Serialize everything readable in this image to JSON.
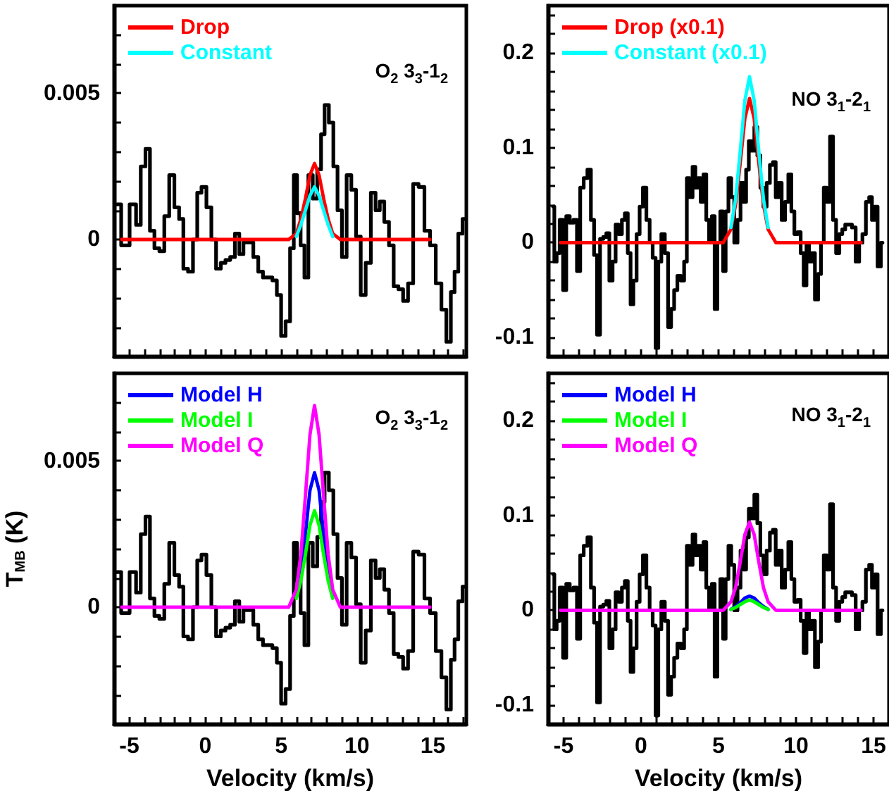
{
  "chart_data": [
    {
      "type": "step",
      "xlim": [
        -6,
        17.2
      ],
      "ylim": [
        -0.004,
        0.008
      ],
      "legend": "top left",
      "tick_labels": "y",
      "annotations": [
        "O$_{2}$ 3$_{3}$-1$_{2}$"
      ],
      "xticks": [
        {
          "value": -6,
          "label": null
        },
        {
          "value": -5,
          "label": null
        },
        {
          "value": -4,
          "label": null
        },
        {
          "value": -3,
          "label": null
        },
        {
          "value": -2,
          "label": null
        },
        {
          "value": -1,
          "label": null
        },
        {
          "value": 0,
          "label": null
        },
        {
          "value": 1,
          "label": null
        },
        {
          "value": 2,
          "label": null
        },
        {
          "value": 3,
          "label": null
        },
        {
          "value": 4,
          "label": null
        },
        {
          "value": 5,
          "label": null
        },
        {
          "value": 6,
          "label": null
        },
        {
          "value": 7,
          "label": null
        },
        {
          "value": 8,
          "label": null
        },
        {
          "value": 9,
          "label": null
        },
        {
          "value": 10,
          "label": null
        },
        {
          "value": 11,
          "label": null
        },
        {
          "value": 12,
          "label": null
        },
        {
          "value": 13,
          "label": null
        },
        {
          "value": 14,
          "label": null
        },
        {
          "value": 15,
          "label": null
        },
        {
          "value": 16,
          "label": null
        },
        {
          "value": 17,
          "label": null
        }
      ],
      "yticks": [
        {
          "value": -0.004,
          "label": null
        },
        {
          "value": -0.003,
          "label": null
        },
        {
          "value": -0.002,
          "label": null
        },
        {
          "value": -0.001,
          "label": null
        },
        0,
        {
          "value": 0.001,
          "label": null
        },
        {
          "value": 0.002,
          "label": null
        },
        {
          "value": 0.003,
          "label": null
        },
        {
          "value": 0.004,
          "label": null
        },
        0.005,
        {
          "value": 0.006,
          "label": null
        },
        {
          "value": 0.007,
          "label": null
        }
      ],
      "series": [
        {
          "color": "#000000",
          "x": [
            -5.82,
            -5.25,
            -4.71,
            -4.4,
            -4.09,
            -3.78,
            -3.5,
            -3.19,
            -2.85,
            -2.54,
            -2.2,
            -1.86,
            -1.58,
            -1.3,
            -0.96,
            -0.65,
            -0.4,
            -0.09,
            0.25,
            0.56,
            0.87,
            1.18,
            1.49,
            1.8,
            2.11,
            2.38,
            2.66,
            3,
            3.34,
            3.65,
            3.96,
            4.27,
            4.58,
            4.86,
            5.14,
            5.45,
            5.73,
            5.94,
            6.16,
            6.41,
            6.66,
            6.93,
            7.24,
            7.52,
            7.74,
            7.99,
            8.3,
            8.58,
            8.85,
            9.16,
            9.47,
            9.78,
            10.09,
            10.4,
            10.74,
            11.08,
            11.36,
            11.64,
            11.95,
            12.26,
            12.57,
            12.88,
            13.19,
            13.53,
            13.87,
            14.24,
            14.64,
            14.98,
            15.39,
            15.73,
            16.04,
            16.32,
            16.53,
            16.81,
            17.09
          ],
          "values": [
            0.0012,
            -0.0002,
            0.0012,
            0.0005,
            0.0025,
            0.0031,
            0.0003,
            -0.0003,
            -0.0004,
            0.0008,
            0.0022,
            0.0011,
            0.0007,
            -0.001,
            -0.0011,
            0,
            0.0016,
            0.0018,
            0.0011,
            0,
            -0.001,
            -0.0008,
            -0.0007,
            -0.0006,
            0.0002,
            -0.0005,
            -0.0001,
            -0.0001,
            -0.0006,
            -0.0011,
            -0.0013,
            -0.0013,
            -0.0014,
            -0.0019,
            -0.0033,
            -0.0028,
            -0.0003,
            0.0022,
            0.0009,
            -0.0002,
            -0.0013,
            0.0022,
            0.0014,
            0.0024,
            0.0036,
            0.0046,
            0.004,
            0.0025,
            0.001,
            -0.0006,
            0.0022,
            0.0017,
            0.0001,
            -0.0019,
            -0.0008,
            0.0016,
            0.001,
            0.0013,
            0.0006,
            -0.0002,
            -0.0016,
            -0.0017,
            -0.0021,
            -0.0015,
            0.0019,
            0.0018,
            0.0003,
            -0.0002,
            -0.0015,
            -0.0024,
            -0.0035,
            -0.0018,
            -0.0011,
            0.0002,
            0.0007
          ]
        },
        {
          "type": "line",
          "name": "Drop",
          "color": "#ff0000",
          "x": [
            -5.5,
            5.5,
            6.0,
            6.3,
            6.6,
            6.9,
            7.2,
            7.5,
            7.8,
            8.1,
            8.4,
            8.9,
            14.8
          ],
          "values": [
            0,
            0,
            0.0002,
            0.0007,
            0.0014,
            0.0022,
            0.0026,
            0.0022,
            0.0014,
            0.0007,
            0.0002,
            0,
            0
          ]
        },
        {
          "type": "line",
          "name": "Constant",
          "color": "#00ffff",
          "x": [
            6.0,
            6.3,
            6.6,
            6.9,
            7.2,
            7.5,
            7.8,
            8.1,
            8.4
          ],
          "values": [
            0.0001,
            0.0005,
            0.001,
            0.0015,
            0.0018,
            0.0015,
            0.001,
            0.0005,
            0.0001
          ]
        }
      ]
    },
    {
      "type": "step",
      "xlim": [
        -6,
        16
      ],
      "ylim": [
        -0.12,
        0.25
      ],
      "legend": "top left",
      "tick_labels": "y",
      "annotations": [
        "NO 3$_{1}$-2$_{1}$"
      ],
      "xticks": [
        {
          "value": -6,
          "label": null
        },
        {
          "value": -5,
          "label": null
        },
        {
          "value": -4,
          "label": null
        },
        {
          "value": -3,
          "label": null
        },
        {
          "value": -2,
          "label": null
        },
        {
          "value": -1,
          "label": null
        },
        {
          "value": 0,
          "label": null
        },
        {
          "value": 1,
          "label": null
        },
        {
          "value": 2,
          "label": null
        },
        {
          "value": 3,
          "label": null
        },
        {
          "value": 4,
          "label": null
        },
        {
          "value": 5,
          "label": null
        },
        {
          "value": 6,
          "label": null
        },
        {
          "value": 7,
          "label": null
        },
        {
          "value": 8,
          "label": null
        },
        {
          "value": 9,
          "label": null
        },
        {
          "value": 10,
          "label": null
        },
        {
          "value": 11,
          "label": null
        },
        {
          "value": 12,
          "label": null
        },
        {
          "value": 13,
          "label": null
        },
        {
          "value": 14,
          "label": null
        },
        {
          "value": 15,
          "label": null
        },
        {
          "value": 16,
          "label": null
        }
      ],
      "yticks": [
        {
          "value": -0.12,
          "label": null
        },
        -0.1,
        {
          "value": -0.08,
          "label": null
        },
        {
          "value": -0.06,
          "label": null
        },
        {
          "value": -0.04,
          "label": null
        },
        {
          "value": -0.02,
          "label": null
        },
        0,
        {
          "value": 0.02,
          "label": null
        },
        {
          "value": 0.04,
          "label": null
        },
        {
          "value": 0.06,
          "label": null
        },
        {
          "value": 0.08,
          "label": null
        },
        0.1,
        {
          "value": 0.12,
          "label": null
        },
        {
          "value": 0.14,
          "label": null
        },
        {
          "value": 0.16,
          "label": null
        },
        {
          "value": 0.18,
          "label": null
        },
        0.2,
        {
          "value": 0.22,
          "label": null
        },
        {
          "value": 0.24,
          "label": null
        }
      ],
      "series": [
        {
          "color": "#000000",
          "x": [
            -5.67,
            -5.52,
            -5.37,
            -5.13,
            -4.93,
            -4.72,
            -4.48,
            -4.24,
            -4.03,
            -3.82,
            -3.58,
            -3.34,
            -3.13,
            -2.93,
            -2.75,
            -2.54,
            -2.33,
            -2.15,
            -1.94,
            -1.73,
            -1.55,
            -1.34,
            -1.13,
            -0.96,
            -0.75,
            -0.6,
            -0.39,
            -0.18,
            0,
            0.24,
            0.45,
            0.66,
            0.84,
            1.04,
            1.19,
            1.43,
            1.64,
            1.85,
            2.03,
            2.24,
            2.45,
            2.69,
            2.87,
            3.04,
            3.22,
            3.43,
            3.58,
            3.76,
            3.94,
            4.12,
            4.3,
            4.48,
            4.66,
            4.84,
            5.01,
            5.22,
            5.37,
            5.55,
            5.73,
            5.91,
            6.12,
            6.33,
            6.51,
            6.69,
            6.87,
            7.04,
            7.22,
            7.4,
            7.61,
            7.79,
            8,
            8.21,
            8.42,
            8.6,
            8.78,
            8.96,
            9.19,
            9.4,
            9.61,
            9.79,
            10,
            10.21,
            10.39,
            10.6,
            10.75,
            10.93,
            11.1,
            11.34,
            11.52,
            11.7,
            11.88,
            12.09,
            12.3,
            12.48,
            12.69,
            12.9,
            13.07,
            13.28,
            13.49,
            13.73,
            13.97,
            14.18,
            14.39,
            14.63,
            14.81,
            14.99,
            15.16,
            15.37,
            15.58
          ],
          "values": [
            0.038,
            -0.02,
            -0.011,
            0.024,
            -0.05,
            0.028,
            0.021,
            0.024,
            -0.03,
            0.058,
            0.068,
            0.077,
            0.024,
            -0.013,
            -0.097,
            0.004,
            0.006,
            0.01,
            -0.04,
            -0.02,
            0.019,
            0.009,
            0.024,
            0.031,
            -0.011,
            -0.065,
            -0.04,
            0.009,
            0.038,
            0.058,
            0.024,
            0,
            -0.016,
            -0.111,
            -0.02,
            0.009,
            -0.011,
            -0.089,
            -0.07,
            -0.05,
            -0.035,
            -0.04,
            -0.02,
            0.068,
            0.048,
            0.08,
            0.058,
            0.068,
            0.043,
            0.072,
            0.024,
            0,
            0.028,
            -0.07,
            0,
            0.033,
            -0.03,
            0.033,
            0.068,
            0.048,
            0,
            0.024,
            0.063,
            0.043,
            0.077,
            0.107,
            0.097,
            0.122,
            0.092,
            0.058,
            0.038,
            0.063,
            0.082,
            0.085,
            0.048,
            0.063,
            0.024,
            0.043,
            0.072,
            0.033,
            0.009,
            0.011,
            -0.011,
            -0.045,
            0,
            -0.02,
            -0.011,
            -0.06,
            -0.033,
            0,
            0.058,
            0.043,
            0.112,
            0.024,
            -0.011,
            0.009,
            0.014,
            0.019,
            0.019,
            0.016,
            -0.02,
            0,
            0.009,
            0.043,
            0.048,
            0.024,
            0.038,
            -0.025,
            0
          ]
        },
        {
          "type": "line",
          "name": "Drop (x0.1)",
          "color": "#ff0000",
          "x": [
            -5.2,
            5.3,
            5.8,
            6.1,
            6.4,
            6.7,
            7.0,
            7.3,
            7.6,
            7.9,
            8.2,
            8.7,
            14.2
          ],
          "values": [
            0,
            0,
            0.014,
            0.04,
            0.084,
            0.131,
            0.152,
            0.131,
            0.084,
            0.04,
            0.014,
            0,
            0
          ]
        },
        {
          "type": "line",
          "name": "Constant (x0.1)",
          "color": "#00ffff",
          "x": [
            5.8,
            6.1,
            6.4,
            6.7,
            7.0,
            7.3,
            7.6,
            7.9,
            8.2
          ],
          "values": [
            0.016,
            0.046,
            0.096,
            0.15,
            0.175,
            0.15,
            0.096,
            0.046,
            0.016
          ]
        }
      ]
    },
    {
      "type": "step",
      "xlim": [
        -6,
        17.2
      ],
      "ylim": [
        -0.004,
        0.008
      ],
      "legend": "top left",
      "xlabel": "Velocity (km/s)",
      "ylabel": "T$_{MB}$ (K)",
      "annotations": [
        "O$_{2}$ 3$_{3}$-1$_{2}$"
      ],
      "xticks": [
        {
          "value": -6,
          "label": null
        },
        -5,
        {
          "value": -4,
          "label": null
        },
        {
          "value": -3,
          "label": null
        },
        {
          "value": -2,
          "label": null
        },
        {
          "value": -1,
          "label": null
        },
        0,
        {
          "value": 1,
          "label": null
        },
        {
          "value": 2,
          "label": null
        },
        {
          "value": 3,
          "label": null
        },
        {
          "value": 4,
          "label": null
        },
        5,
        {
          "value": 6,
          "label": null
        },
        {
          "value": 7,
          "label": null
        },
        {
          "value": 8,
          "label": null
        },
        {
          "value": 9,
          "label": null
        },
        10,
        {
          "value": 11,
          "label": null
        },
        {
          "value": 12,
          "label": null
        },
        {
          "value": 13,
          "label": null
        },
        {
          "value": 14,
          "label": null
        },
        15,
        {
          "value": 16,
          "label": null
        },
        {
          "value": 17,
          "label": null
        }
      ],
      "yticks": [
        {
          "value": -0.004,
          "label": null
        },
        {
          "value": -0.003,
          "label": null
        },
        {
          "value": -0.002,
          "label": null
        },
        {
          "value": -0.001,
          "label": null
        },
        0,
        {
          "value": 0.001,
          "label": null
        },
        {
          "value": 0.002,
          "label": null
        },
        {
          "value": 0.003,
          "label": null
        },
        {
          "value": 0.004,
          "label": null
        },
        0.005,
        {
          "value": 0.006,
          "label": null
        },
        {
          "value": 0.007,
          "label": null
        }
      ],
      "series": [
        {
          "color": "#000000",
          "x": [
            -5.82,
            -5.25,
            -4.71,
            -4.4,
            -4.09,
            -3.78,
            -3.5,
            -3.19,
            -2.85,
            -2.54,
            -2.2,
            -1.86,
            -1.58,
            -1.3,
            -0.96,
            -0.65,
            -0.4,
            -0.09,
            0.25,
            0.56,
            0.87,
            1.18,
            1.49,
            1.8,
            2.11,
            2.38,
            2.66,
            3,
            3.34,
            3.65,
            3.96,
            4.27,
            4.58,
            4.86,
            5.14,
            5.45,
            5.73,
            5.94,
            6.16,
            6.41,
            6.66,
            6.93,
            7.24,
            7.52,
            7.74,
            7.99,
            8.3,
            8.58,
            8.85,
            9.16,
            9.47,
            9.78,
            10.09,
            10.4,
            10.74,
            11.08,
            11.36,
            11.64,
            11.95,
            12.26,
            12.57,
            12.88,
            13.19,
            13.53,
            13.87,
            14.24,
            14.64,
            14.98,
            15.39,
            15.73,
            16.04,
            16.32,
            16.53,
            16.81,
            17.09
          ],
          "values": [
            0.0012,
            -0.0002,
            0.0012,
            0.0005,
            0.0025,
            0.0031,
            0.0003,
            -0.0003,
            -0.0004,
            0.0008,
            0.0022,
            0.0011,
            0.0007,
            -0.001,
            -0.0011,
            0,
            0.0016,
            0.0018,
            0.0011,
            0,
            -0.001,
            -0.0008,
            -0.0007,
            -0.0006,
            0.0002,
            -0.0005,
            -0.0001,
            -0.0001,
            -0.0006,
            -0.0011,
            -0.0013,
            -0.0013,
            -0.0014,
            -0.0019,
            -0.0033,
            -0.0028,
            -0.0003,
            0.0022,
            0.0009,
            -0.0002,
            -0.0013,
            0.0022,
            0.0014,
            0.0024,
            0.0036,
            0.0046,
            0.004,
            0.0025,
            0.001,
            -0.0006,
            0.0022,
            0.0017,
            0.0001,
            -0.0019,
            -0.0008,
            0.0016,
            0.001,
            0.0013,
            0.0006,
            -0.0002,
            -0.0016,
            -0.0017,
            -0.0021,
            -0.0015,
            0.0019,
            0.0018,
            0.0003,
            -0.0002,
            -0.0015,
            -0.0024,
            -0.0035,
            -0.0018,
            -0.0011,
            0.0002,
            0.0007
          ]
        },
        {
          "type": "line",
          "name": "Model H",
          "color": "#0000ff",
          "x": [
            6.0,
            6.3,
            6.6,
            6.9,
            7.2,
            7.5,
            7.8,
            8.1,
            8.4
          ],
          "values": [
            0.0004,
            0.0012,
            0.0025,
            0.004,
            0.0046,
            0.004,
            0.0025,
            0.0012,
            0.0004
          ]
        },
        {
          "type": "line",
          "name": "Model I",
          "color": "#00ff00",
          "x": [
            6.0,
            6.3,
            6.6,
            6.9,
            7.2,
            7.5,
            7.8,
            8.1,
            8.4
          ],
          "values": [
            0.0003,
            0.0009,
            0.0018,
            0.0028,
            0.0033,
            0.0028,
            0.0018,
            0.0009,
            0.0003
          ]
        },
        {
          "type": "line",
          "name": "Model Q",
          "color": "#ff00ff",
          "x": [
            -5.5,
            5.5,
            6.0,
            6.3,
            6.6,
            6.9,
            7.2,
            7.5,
            7.8,
            8.1,
            8.4,
            8.9,
            14.8
          ],
          "values": [
            0,
            0,
            0.0006,
            0.0018,
            0.0038,
            0.0059,
            0.0069,
            0.0059,
            0.0038,
            0.0018,
            0.0006,
            0,
            0
          ]
        }
      ]
    },
    {
      "type": "step",
      "xlim": [
        -6,
        16
      ],
      "ylim": [
        -0.12,
        0.25
      ],
      "legend": "top left",
      "xlabel": "Velocity (km/s)",
      "annotations": [
        "NO 3$_{1}$-2$_{1}$"
      ],
      "xticks": [
        {
          "value": -6,
          "label": null
        },
        -5,
        {
          "value": -4,
          "label": null
        },
        {
          "value": -3,
          "label": null
        },
        {
          "value": -2,
          "label": null
        },
        {
          "value": -1,
          "label": null
        },
        0,
        {
          "value": 1,
          "label": null
        },
        {
          "value": 2,
          "label": null
        },
        {
          "value": 3,
          "label": null
        },
        {
          "value": 4,
          "label": null
        },
        5,
        {
          "value": 6,
          "label": null
        },
        {
          "value": 7,
          "label": null
        },
        {
          "value": 8,
          "label": null
        },
        {
          "value": 9,
          "label": null
        },
        10,
        {
          "value": 11,
          "label": null
        },
        {
          "value": 12,
          "label": null
        },
        {
          "value": 13,
          "label": null
        },
        {
          "value": 14,
          "label": null
        },
        15,
        {
          "value": 16,
          "label": null
        }
      ],
      "yticks": [
        {
          "value": -0.12,
          "label": null
        },
        -0.1,
        {
          "value": -0.08,
          "label": null
        },
        {
          "value": -0.06,
          "label": null
        },
        {
          "value": -0.04,
          "label": null
        },
        {
          "value": -0.02,
          "label": null
        },
        0,
        {
          "value": 0.02,
          "label": null
        },
        {
          "value": 0.04,
          "label": null
        },
        {
          "value": 0.06,
          "label": null
        },
        {
          "value": 0.08,
          "label": null
        },
        0.1,
        {
          "value": 0.12,
          "label": null
        },
        {
          "value": 0.14,
          "label": null
        },
        {
          "value": 0.16,
          "label": null
        },
        {
          "value": 0.18,
          "label": null
        },
        0.2,
        {
          "value": 0.22,
          "label": null
        },
        {
          "value": 0.24,
          "label": null
        }
      ],
      "series": [
        {
          "color": "#000000",
          "x": [
            -5.67,
            -5.52,
            -5.37,
            -5.13,
            -4.93,
            -4.72,
            -4.48,
            -4.24,
            -4.03,
            -3.82,
            -3.58,
            -3.34,
            -3.13,
            -2.93,
            -2.75,
            -2.54,
            -2.33,
            -2.15,
            -1.94,
            -1.73,
            -1.55,
            -1.34,
            -1.13,
            -0.96,
            -0.75,
            -0.6,
            -0.39,
            -0.18,
            0,
            0.24,
            0.45,
            0.66,
            0.84,
            1.04,
            1.19,
            1.43,
            1.64,
            1.85,
            2.03,
            2.24,
            2.45,
            2.69,
            2.87,
            3.04,
            3.22,
            3.43,
            3.58,
            3.76,
            3.94,
            4.12,
            4.3,
            4.48,
            4.66,
            4.84,
            5.01,
            5.22,
            5.37,
            5.55,
            5.73,
            5.91,
            6.12,
            6.33,
            6.51,
            6.69,
            6.87,
            7.04,
            7.22,
            7.4,
            7.61,
            7.79,
            8,
            8.21,
            8.42,
            8.6,
            8.78,
            8.96,
            9.19,
            9.4,
            9.61,
            9.79,
            10,
            10.21,
            10.39,
            10.6,
            10.75,
            10.93,
            11.1,
            11.34,
            11.52,
            11.7,
            11.88,
            12.09,
            12.3,
            12.48,
            12.69,
            12.9,
            13.07,
            13.28,
            13.49,
            13.73,
            13.97,
            14.18,
            14.39,
            14.63,
            14.81,
            14.99,
            15.16,
            15.37,
            15.58
          ],
          "values": [
            0.038,
            -0.02,
            -0.011,
            0.024,
            -0.05,
            0.028,
            0.021,
            0.024,
            -0.03,
            0.058,
            0.068,
            0.077,
            0.024,
            -0.013,
            -0.097,
            0.004,
            0.006,
            0.01,
            -0.04,
            -0.02,
            0.019,
            0.009,
            0.024,
            0.031,
            -0.011,
            -0.065,
            -0.04,
            0.009,
            0.038,
            0.058,
            0.024,
            0,
            -0.016,
            -0.111,
            -0.02,
            0.009,
            -0.011,
            -0.089,
            -0.07,
            -0.05,
            -0.035,
            -0.04,
            -0.02,
            0.068,
            0.048,
            0.08,
            0.058,
            0.068,
            0.043,
            0.072,
            0.024,
            0,
            0.028,
            -0.07,
            0,
            0.033,
            -0.03,
            0.033,
            0.068,
            0.048,
            0,
            0.024,
            0.063,
            0.043,
            0.077,
            0.107,
            0.097,
            0.122,
            0.092,
            0.058,
            0.038,
            0.063,
            0.082,
            0.085,
            0.048,
            0.063,
            0.024,
            0.043,
            0.072,
            0.033,
            0.009,
            0.011,
            -0.011,
            -0.045,
            0,
            -0.02,
            -0.011,
            -0.06,
            -0.033,
            0,
            0.058,
            0.043,
            0.112,
            0.024,
            -0.011,
            0.009,
            0.014,
            0.019,
            0.019,
            0.016,
            -0.02,
            0,
            0.009,
            0.043,
            0.048,
            0.024,
            0.038,
            -0.025,
            0
          ]
        },
        {
          "type": "line",
          "name": "Model H",
          "color": "#0000ff",
          "x": [
            5.8,
            6.1,
            6.4,
            6.7,
            7.0,
            7.3,
            7.6,
            7.9,
            8.2
          ],
          "values": [
            0.001,
            0.004,
            0.008,
            0.013,
            0.015,
            0.013,
            0.008,
            0.004,
            0.001
          ]
        },
        {
          "type": "line",
          "name": "Model I",
          "color": "#00ff00",
          "x": [
            5.8,
            6.1,
            6.4,
            6.7,
            7.0,
            7.3,
            7.6,
            7.9,
            8.2
          ],
          "values": [
            0.001,
            0.003,
            0.006,
            0.009,
            0.011,
            0.009,
            0.006,
            0.003,
            0.001
          ]
        },
        {
          "type": "line",
          "name": "Model Q",
          "color": "#ff00ff",
          "x": [
            -5.2,
            5.3,
            5.8,
            6.1,
            6.4,
            6.7,
            7.0,
            7.3,
            7.6,
            7.9,
            8.2,
            8.7,
            14.2
          ],
          "values": [
            0,
            0,
            0.009,
            0.024,
            0.051,
            0.08,
            0.093,
            0.08,
            0.051,
            0.024,
            0.009,
            0,
            0
          ]
        }
      ]
    }
  ]
}
